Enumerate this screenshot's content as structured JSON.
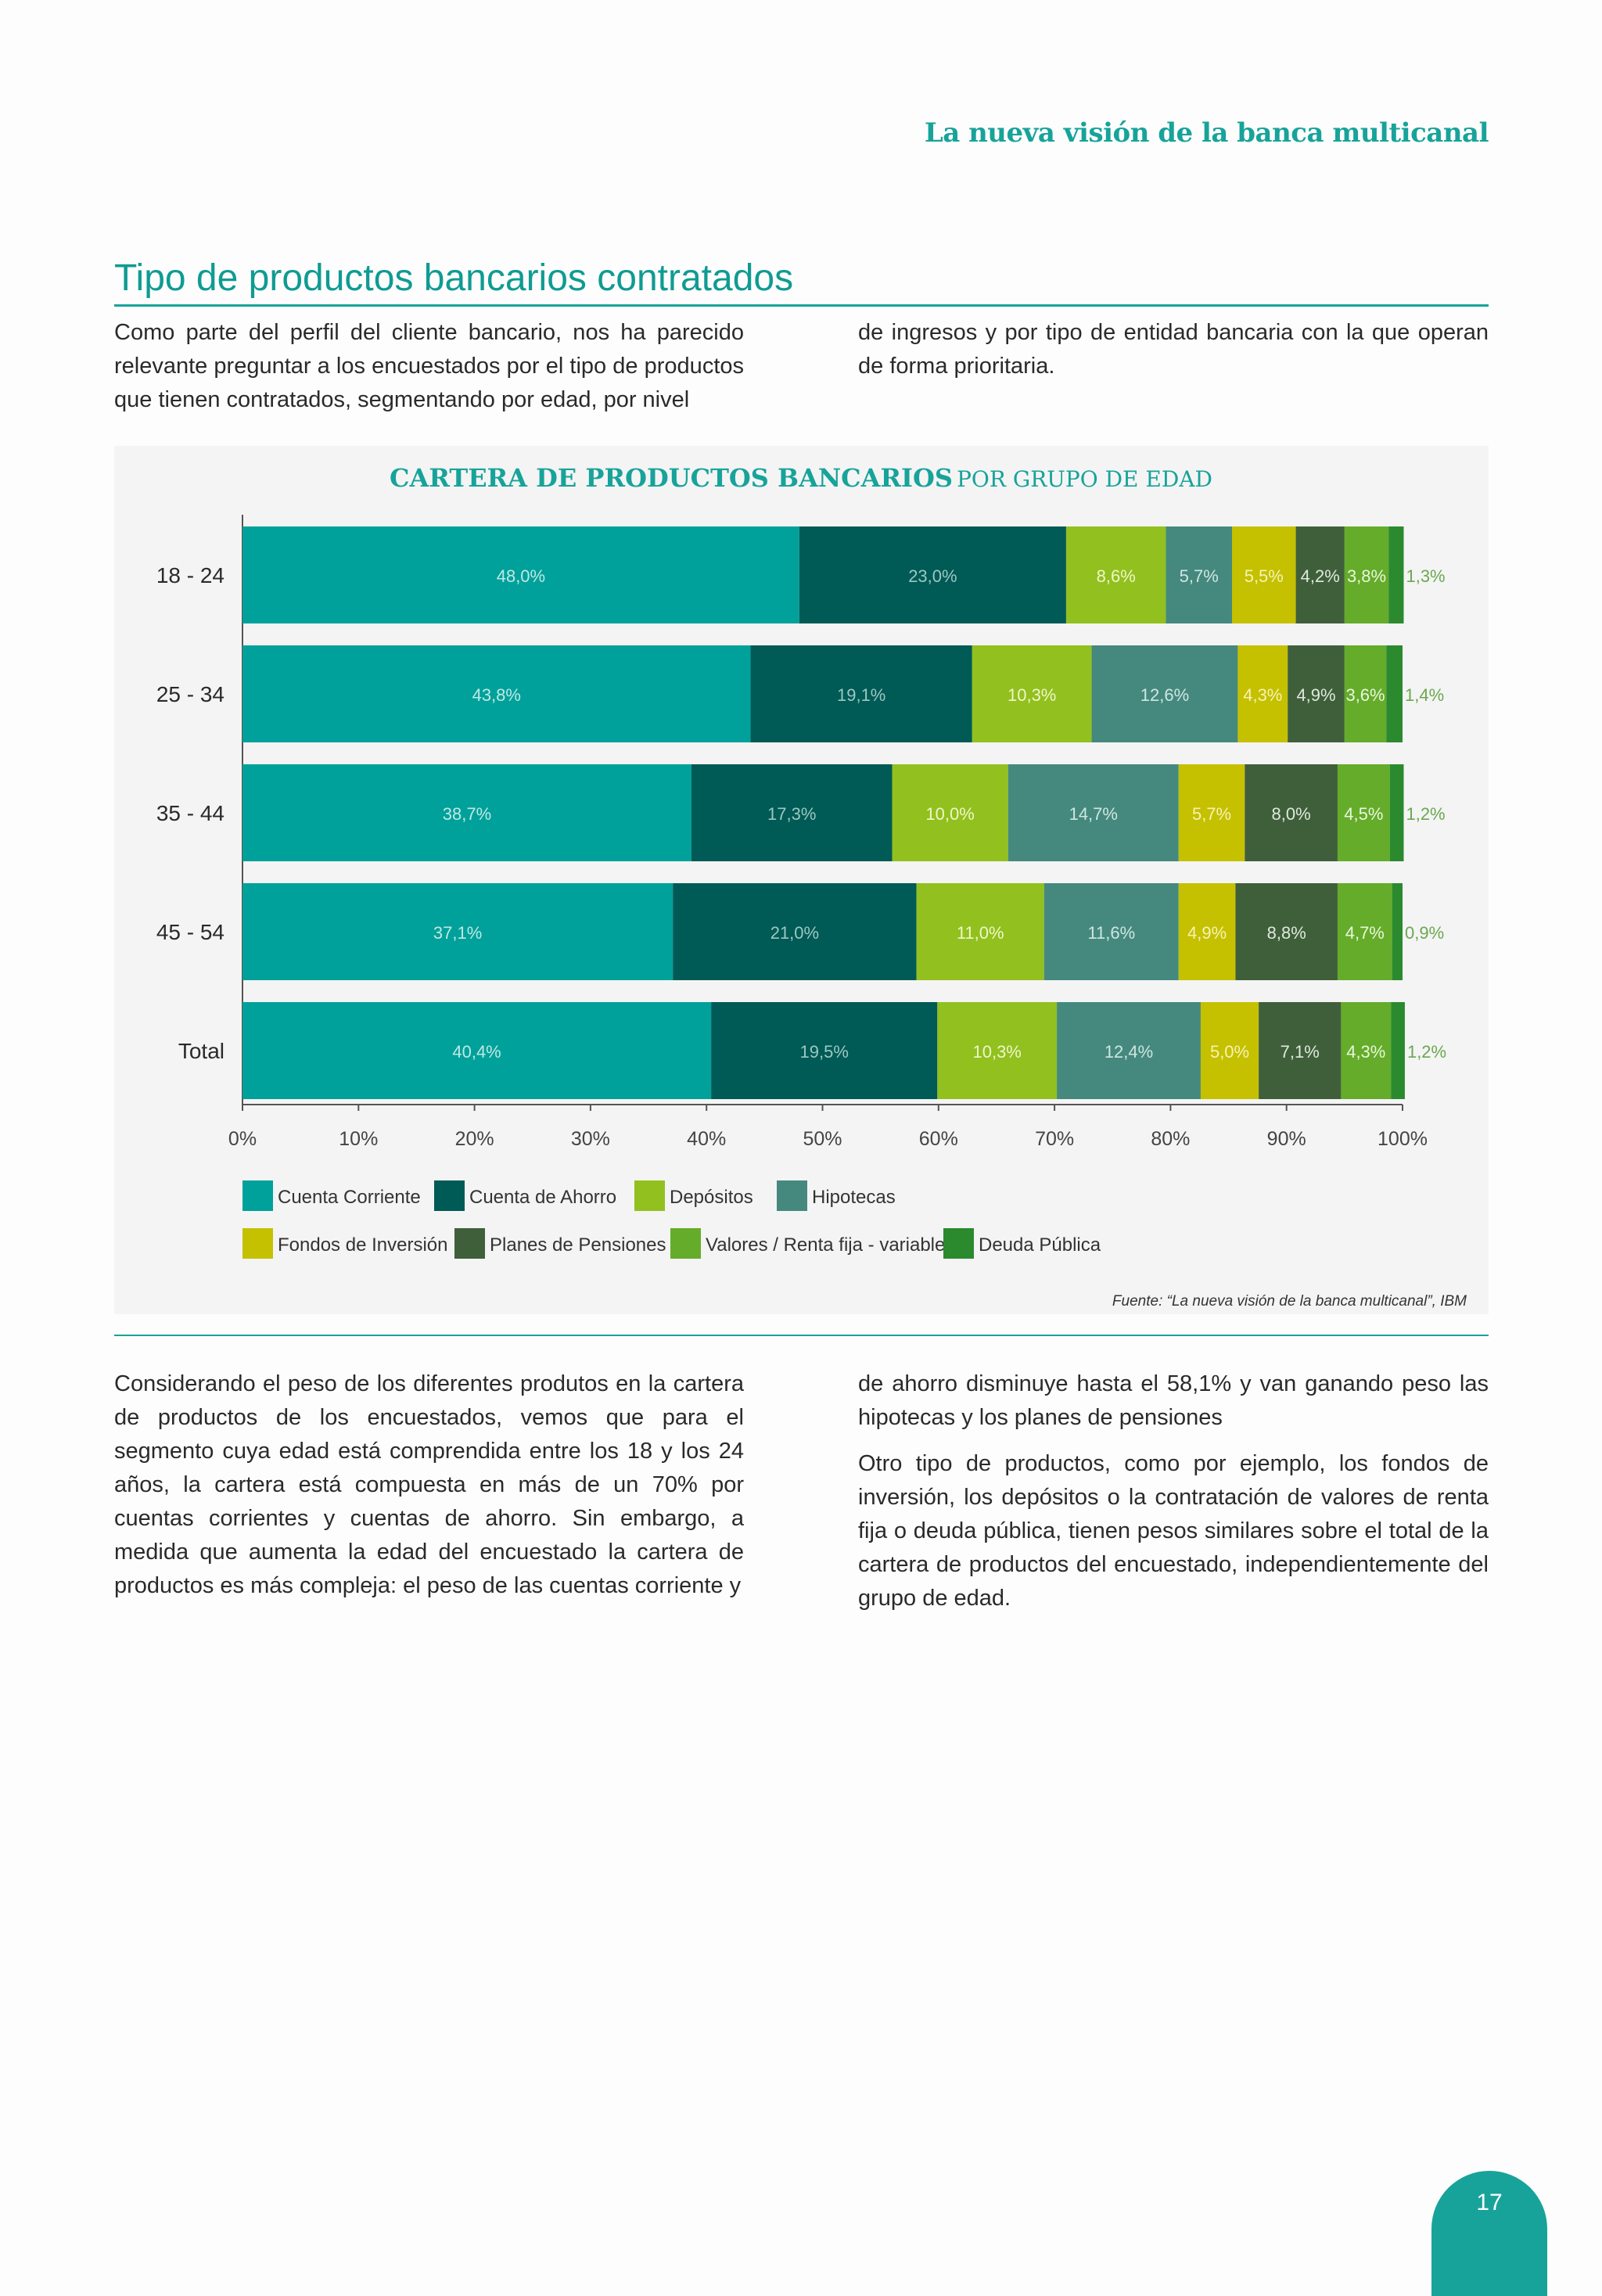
{
  "header": {
    "title": "La nueva visión de la banca multicanal"
  },
  "section": {
    "title": "Tipo de productos bancarios contratados"
  },
  "intro": {
    "left": "Como parte del perfil del cliente bancario, nos ha parecido relevante preguntar a los encuestados por el tipo de productos que tienen contratados, segmentando por edad, por nivel",
    "right": "de ingresos y por tipo de entidad bancaria con la que operan de forma prioritaria."
  },
  "chart_title": {
    "main": "CARTERA DE PRODUCTOS BANCARIOS",
    "sub": "POR GRUPO DE EDAD"
  },
  "chart_data": {
    "type": "bar",
    "orientation": "horizontal",
    "stacked": true,
    "categories": [
      "18 - 24",
      "25 - 34",
      "35 - 44",
      "45 - 54",
      "Total"
    ],
    "xlim": [
      0,
      100
    ],
    "x_ticks": [
      "0%",
      "10%",
      "20%",
      "30%",
      "40%",
      "50%",
      "60%",
      "70%",
      "80%",
      "90%",
      "100%"
    ],
    "legend_position": "bottom",
    "series": [
      {
        "name": "Cuenta Corriente",
        "color": "#00a19a",
        "values": [
          48.0,
          43.8,
          38.7,
          37.1,
          40.4
        ],
        "labels": [
          "48,0%",
          "43,8%",
          "38,7%",
          "37,1%",
          "40,4%"
        ]
      },
      {
        "name": "Cuenta de Ahorro",
        "color": "#005a55",
        "values": [
          23.0,
          19.1,
          17.3,
          21.0,
          19.5
        ],
        "labels": [
          "23,0%",
          "19,1%",
          "17,3%",
          "21,0%",
          "19,5%"
        ]
      },
      {
        "name": "Depósitos",
        "color": "#92c01f",
        "values": [
          8.6,
          10.3,
          10.0,
          11.0,
          10.3
        ],
        "labels": [
          "8,6%",
          "10,3%",
          "10,0%",
          "11,0%",
          "10,3%"
        ]
      },
      {
        "name": "Hipotecas",
        "color": "#45897e",
        "values": [
          5.7,
          12.6,
          14.7,
          11.6,
          12.4
        ],
        "labels": [
          "5,7%",
          "12,6%",
          "14,7%",
          "11,6%",
          "12,4%"
        ]
      },
      {
        "name": "Fondos de Inversión",
        "color": "#c5c000",
        "values": [
          5.5,
          4.3,
          5.7,
          4.9,
          5.0
        ],
        "labels": [
          "5,5%",
          "4,3%",
          "5,7%",
          "4,9%",
          "5,0%"
        ]
      },
      {
        "name": "Planes de Pensiones",
        "color": "#3f5f3b",
        "values": [
          4.2,
          4.9,
          8.0,
          8.8,
          7.1
        ],
        "labels": [
          "4,2%",
          "4,9%",
          "8,0%",
          "8,8%",
          "7,1%"
        ]
      },
      {
        "name": "Valores / Renta fija - variable",
        "color": "#64ac2a",
        "values": [
          3.8,
          3.6,
          4.5,
          4.7,
          4.3
        ],
        "labels": [
          "3,8%",
          "3,6%",
          "4,5%",
          "4,7%",
          "4,3%"
        ]
      },
      {
        "name": "Deuda Pública",
        "color": "#2b8a2e",
        "values": [
          1.3,
          1.4,
          1.2,
          0.9,
          1.2
        ],
        "labels": [
          "1,3%",
          "1,4%",
          "1,2%",
          "0,9%",
          "1,2%"
        ]
      }
    ]
  },
  "source": "Fuente: “La nueva visión de la banca multicanal”, IBM",
  "body": {
    "left": "Considerando el peso de los diferentes produtos en la cartera de productos de los encuestados, vemos que para el segmento cuya edad está comprendida entre los 18 y los 24 años, la cartera está compuesta en más de un 70% por cuentas corrientes y cuentas de ahorro. Sin embargo, a medida que aumenta la edad del encuestado la cartera de productos es más compleja: el peso de las cuentas corriente y",
    "right_p1": "de ahorro disminuye hasta el 58,1% y van ganando peso las hipotecas y los planes de pensiones",
    "right_p2": "Otro tipo de productos, como por ejemplo, los fondos de inversión, los depósitos o la contratación de valores de renta fija o deuda pública, tienen pesos similares sobre el total de la cartera de productos del encuestado, independientemente del grupo de edad."
  },
  "page_number": "17"
}
